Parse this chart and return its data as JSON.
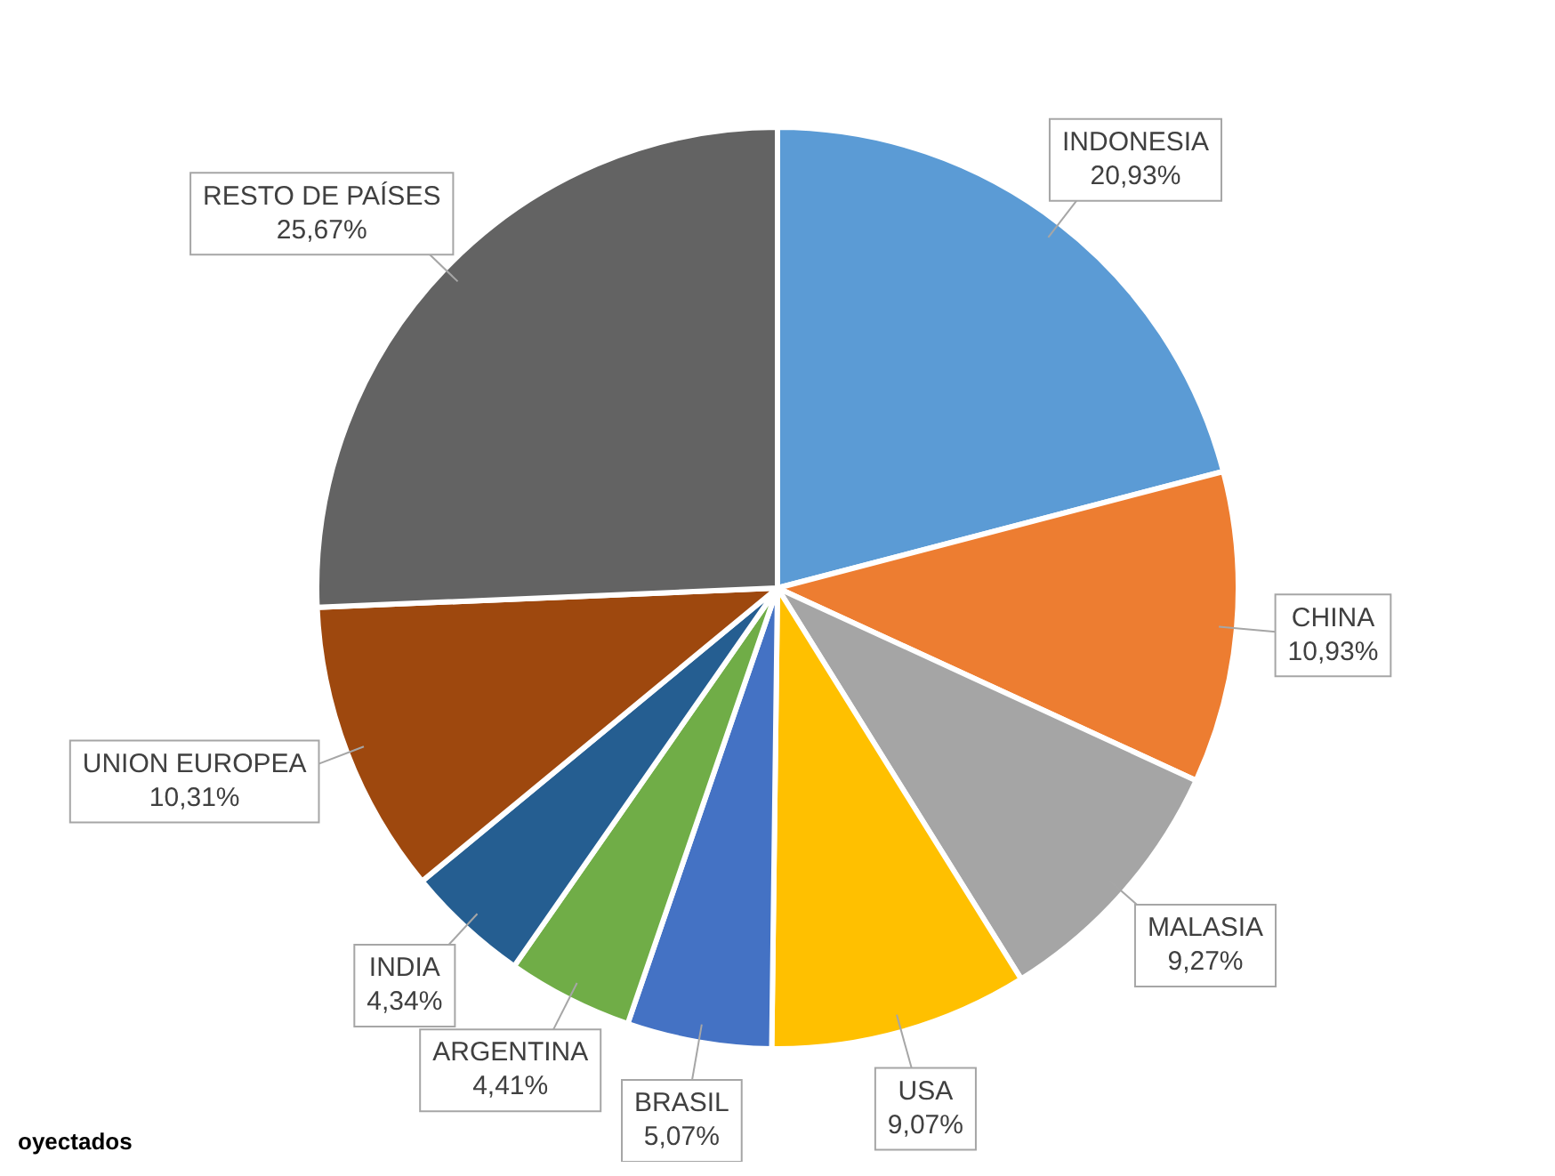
{
  "chart_data": {
    "type": "pie",
    "categories": [
      "INDONESIA",
      "CHINA",
      "MALASIA",
      "USA",
      "BRASIL",
      "ARGENTINA",
      "INDIA",
      "UNION EUROPEA",
      "RESTO DE PAÍSES"
    ],
    "values": [
      20.93,
      10.93,
      9.27,
      9.07,
      5.07,
      4.41,
      4.34,
      10.31,
      25.67
    ],
    "colors": [
      "#5b9bd5",
      "#ed7d31",
      "#a5a5a5",
      "#ffc000",
      "#4472c4",
      "#70ad47",
      "#255e91",
      "#9e480e",
      "#636363"
    ],
    "value_labels": [
      "20,93%",
      "10,93%",
      "9,27%",
      "9,07%",
      "5,07%",
      "4,41%",
      "4,34%",
      "10,31%",
      "25,67%"
    ],
    "legend": false,
    "annotations": [
      "oyectados"
    ]
  }
}
